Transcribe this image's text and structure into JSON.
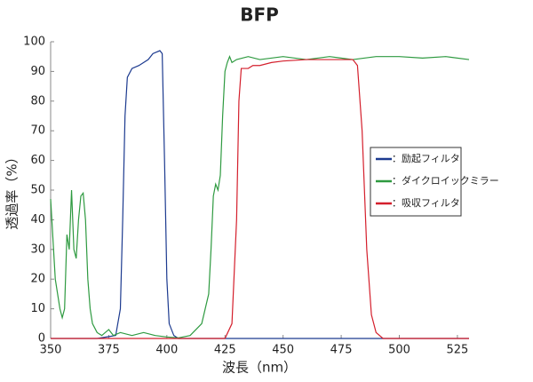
{
  "chart_data": {
    "type": "line",
    "title": "BFP",
    "x_label": "波長（nm）",
    "y_label": "透過率（%）",
    "xlim": [
      350,
      530
    ],
    "xticks": [
      350,
      375,
      400,
      425,
      450,
      475,
      500,
      525
    ],
    "ylim": [
      0,
      100
    ],
    "yticks": [
      0,
      10,
      20,
      30,
      40,
      50,
      60,
      70,
      80,
      90,
      100
    ],
    "grid": false,
    "legend": "right",
    "series": [
      {
        "name": "：励起フィルタ",
        "color": "#1c3a8f",
        "x": [
          350,
          370,
          378,
          380,
          381,
          382,
          383,
          385,
          388,
          390,
          392,
          394,
          397,
          398,
          399,
          400,
          401,
          403,
          405,
          530
        ],
        "values": [
          0,
          0,
          1,
          10,
          40,
          75,
          88,
          91,
          92,
          93,
          94,
          96,
          97,
          96,
          60,
          20,
          5,
          1,
          0,
          0
        ]
      },
      {
        "name": "：ダイクロイックミラー",
        "color": "#2e9a40",
        "x": [
          350,
          352,
          354,
          355,
          356,
          357,
          358,
          359,
          360,
          361,
          362,
          363,
          364,
          365,
          366,
          367,
          368,
          370,
          372,
          375,
          377,
          380,
          385,
          390,
          395,
          400,
          405,
          410,
          415,
          418,
          419,
          420,
          421,
          422,
          423,
          424,
          425,
          426,
          427,
          428,
          430,
          435,
          440,
          450,
          460,
          470,
          480,
          490,
          500,
          510,
          520,
          530
        ],
        "values": [
          47,
          20,
          10,
          7,
          10,
          35,
          30,
          50,
          30,
          27,
          40,
          48,
          49,
          40,
          20,
          10,
          5,
          2,
          1,
          3,
          1,
          2,
          1,
          2,
          1,
          0.5,
          0.2,
          1,
          5,
          15,
          30,
          48,
          52,
          50,
          55,
          75,
          90,
          93,
          95,
          93,
          94,
          95,
          94,
          95,
          94,
          95,
          94,
          95,
          95,
          94.5,
          95,
          94
        ]
      },
      {
        "name": "：吸収フィルタ",
        "color": "#d41f2c",
        "x": [
          350,
          425,
          428,
          430,
          431,
          432,
          435,
          437,
          440,
          445,
          450,
          460,
          470,
          480,
          482,
          484,
          486,
          488,
          490,
          493,
          530
        ],
        "values": [
          0,
          0,
          5,
          40,
          80,
          91,
          91,
          92,
          92,
          93,
          93.5,
          94,
          94,
          94,
          92,
          70,
          30,
          8,
          2,
          0,
          0
        ]
      }
    ]
  }
}
